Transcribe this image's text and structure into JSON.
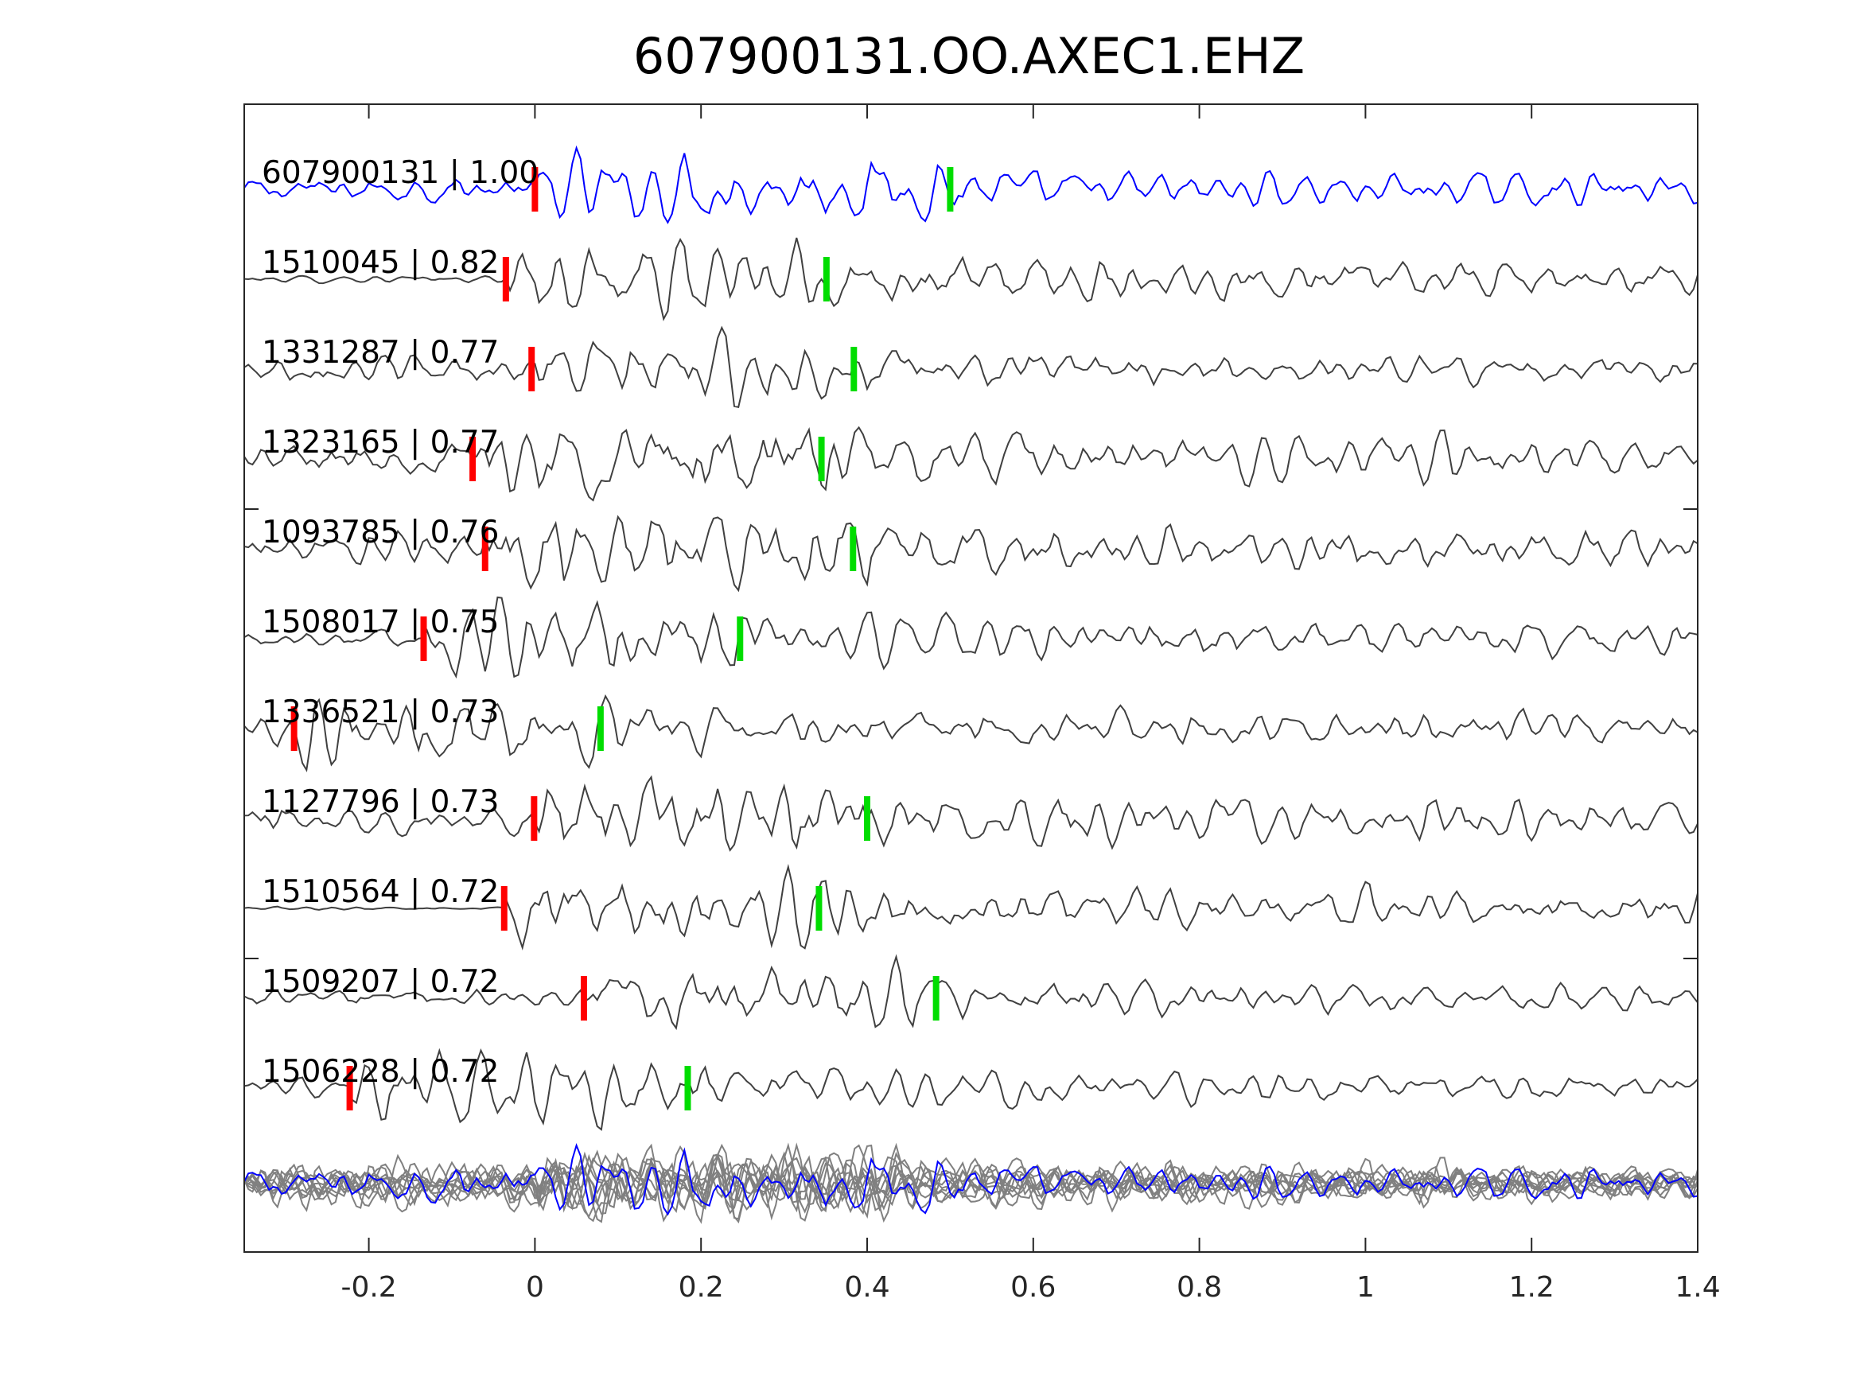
{
  "chart_data": {
    "type": "line",
    "title": "607900131.OO.AXEC1.EHZ",
    "xlabel": "",
    "ylabel": "",
    "xlim": [
      -0.35,
      1.4
    ],
    "xticks": [
      -0.2,
      0,
      0.2,
      0.4,
      0.6,
      0.8,
      1,
      1.2,
      1.4
    ],
    "xtick_labels": [
      "-0.2",
      "0",
      "0.2",
      "0.4",
      "0.6",
      "0.8",
      "1",
      "1.2",
      "1.4"
    ],
    "grid": false,
    "colors": {
      "template": "#0000ff",
      "neighbor": "#404040",
      "stack": "#808080",
      "p_pick": "#ff0000",
      "s_pick": "#00dd00"
    },
    "series": [
      {
        "name": "607900131 | 1.00",
        "id": "607900131",
        "cc": "1.00",
        "p_pick": 0.0,
        "s_pick": 0.5,
        "template": true
      },
      {
        "name": "1510045 | 0.82",
        "id": "1510045",
        "cc": "0.82",
        "p_pick": -0.035,
        "s_pick": 0.351
      },
      {
        "name": "1331287 | 0.77",
        "id": "1331287",
        "cc": "0.77",
        "p_pick": -0.004,
        "s_pick": 0.384
      },
      {
        "name": "1323165 | 0.77",
        "id": "1323165",
        "cc": "0.77",
        "p_pick": -0.075,
        "s_pick": 0.345
      },
      {
        "name": "1093785 | 0.76",
        "id": "1093785",
        "cc": "0.76",
        "p_pick": -0.06,
        "s_pick": 0.383
      },
      {
        "name": "1508017 | 0.75",
        "id": "1508017",
        "cc": "0.75",
        "p_pick": -0.134,
        "s_pick": 0.247
      },
      {
        "name": "1336521 | 0.73",
        "id": "1336521",
        "cc": "0.73",
        "p_pick": -0.29,
        "s_pick": 0.079
      },
      {
        "name": "1127796 | 0.73",
        "id": "1127796",
        "cc": "0.73",
        "p_pick": -0.001,
        "s_pick": 0.4
      },
      {
        "name": "1510564 | 0.72",
        "id": "1510564",
        "cc": "0.72",
        "p_pick": -0.037,
        "s_pick": 0.342
      },
      {
        "name": "1509207 | 0.72",
        "id": "1509207",
        "cc": "0.72",
        "p_pick": 0.059,
        "s_pick": 0.483
      },
      {
        "name": "1506228 | 0.72",
        "id": "1506228",
        "cc": "0.72",
        "p_pick": -0.223,
        "s_pick": 0.184
      }
    ]
  }
}
